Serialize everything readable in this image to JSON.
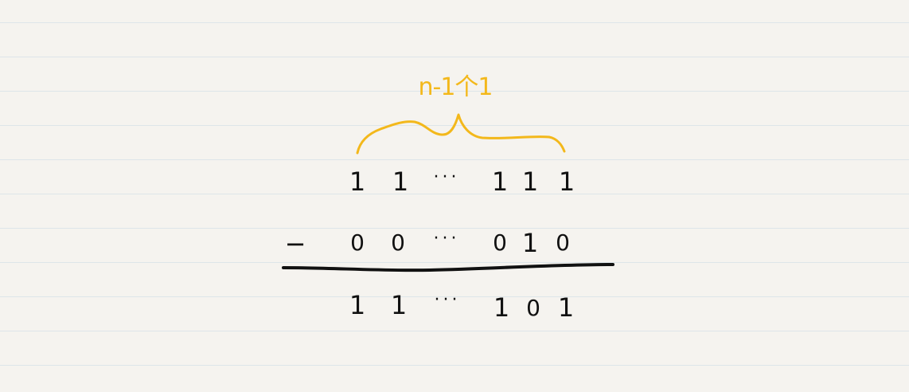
{
  "brace_label": "n-1个1",
  "row1": [
    "1",
    "1",
    "···",
    "1",
    "1",
    "1"
  ],
  "operator": "−",
  "row2": [
    "0",
    "0",
    "···",
    "0",
    "1",
    "0"
  ],
  "row3": [
    "1",
    "1",
    "···",
    "1",
    "0",
    "1"
  ],
  "colors": {
    "ink": "#111111",
    "accent": "#f3b81b",
    "paper": "#f5f3ef",
    "rule": "#dde5e9"
  }
}
